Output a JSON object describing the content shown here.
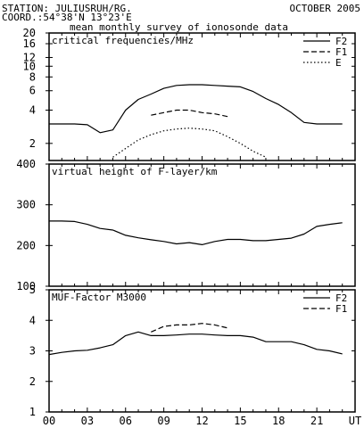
{
  "header": {
    "station": "STATION: JULIUSRUH/RG.",
    "date": "OCTOBER 2005",
    "coord": "COORD.:54°38'N 13°23'E",
    "subtitle": "mean monthly survey of ionosonde data"
  },
  "x_ticks": [
    "00",
    "03",
    "06",
    "09",
    "12",
    "15",
    "18",
    "21",
    "UT"
  ],
  "chart_data": [
    {
      "type": "line",
      "title": "critical frequencies/MHz",
      "yscale": "log",
      "ylim": [
        1.4,
        20
      ],
      "xlim": [
        0,
        24
      ],
      "yticks": [
        2,
        4,
        6,
        8,
        10,
        12,
        16,
        20
      ],
      "ytick_labels": [
        "2",
        "4",
        "6",
        "8",
        "10",
        "12",
        "16",
        "20"
      ],
      "legend": "top-right",
      "series": [
        {
          "name": "F2",
          "style": "solid",
          "x": [
            0,
            1,
            2,
            3,
            4,
            5,
            6,
            7,
            8,
            9,
            10,
            11,
            12,
            13,
            14,
            15,
            16,
            17,
            18,
            19,
            20,
            21,
            22,
            23
          ],
          "y": [
            3.0,
            3.0,
            3.0,
            2.95,
            2.5,
            2.65,
            4.0,
            5.0,
            5.6,
            6.3,
            6.7,
            6.8,
            6.8,
            6.7,
            6.6,
            6.5,
            5.9,
            5.1,
            4.5,
            3.8,
            3.1,
            3.0,
            3.0,
            3.0
          ]
        },
        {
          "name": "F1",
          "style": "dashed",
          "x": [
            8,
            9,
            10,
            11,
            12,
            13,
            14
          ],
          "y": [
            3.6,
            3.8,
            4.0,
            4.0,
            3.8,
            3.7,
            3.5
          ]
        },
        {
          "name": "E",
          "style": "dotted",
          "x": [
            5,
            6,
            7,
            8,
            9,
            10,
            11,
            12,
            13,
            14,
            15,
            16,
            17
          ],
          "y": [
            1.5,
            1.8,
            2.15,
            2.4,
            2.6,
            2.7,
            2.75,
            2.7,
            2.6,
            2.3,
            2.0,
            1.7,
            1.5
          ]
        }
      ]
    },
    {
      "type": "line",
      "title": "virtual height of F-layer/km",
      "ylim": [
        100,
        400
      ],
      "xlim": [
        0,
        24
      ],
      "yticks": [
        100,
        200,
        300,
        400
      ],
      "ytick_labels": [
        "100",
        "200",
        "300",
        "400"
      ],
      "series": [
        {
          "style": "solid",
          "x": [
            0,
            1,
            2,
            3,
            4,
            5,
            6,
            7,
            8,
            9,
            10,
            11,
            12,
            13,
            14,
            15,
            16,
            17,
            18,
            19,
            20,
            21,
            22,
            23
          ],
          "y": [
            260,
            260,
            259,
            252,
            242,
            238,
            225,
            219,
            214,
            210,
            204,
            207,
            202,
            210,
            215,
            215,
            212,
            212,
            215,
            218,
            228,
            247,
            252,
            256
          ]
        }
      ]
    },
    {
      "type": "line",
      "title": "MUF-Factor M3000",
      "ylim": [
        1,
        5
      ],
      "xlim": [
        0,
        24
      ],
      "yticks": [
        1,
        2,
        3,
        4,
        5
      ],
      "ytick_labels": [
        "1",
        "2",
        "3",
        "4",
        "5"
      ],
      "legend": "top-right",
      "series": [
        {
          "name": "F2",
          "style": "solid",
          "x": [
            0,
            1,
            2,
            3,
            4,
            5,
            6,
            7,
            8,
            9,
            10,
            11,
            12,
            13,
            14,
            15,
            16,
            17,
            18,
            19,
            20,
            21,
            22,
            23
          ],
          "y": [
            2.88,
            2.95,
            3.0,
            3.02,
            3.1,
            3.2,
            3.5,
            3.62,
            3.5,
            3.5,
            3.52,
            3.55,
            3.55,
            3.52,
            3.5,
            3.5,
            3.45,
            3.3,
            3.3,
            3.3,
            3.2,
            3.05,
            3.0,
            2.9
          ]
        },
        {
          "name": "F1",
          "style": "dashed",
          "x": [
            8,
            9,
            10,
            11,
            12,
            13,
            14
          ],
          "y": [
            3.62,
            3.8,
            3.85,
            3.85,
            3.9,
            3.85,
            3.75
          ]
        }
      ]
    }
  ]
}
